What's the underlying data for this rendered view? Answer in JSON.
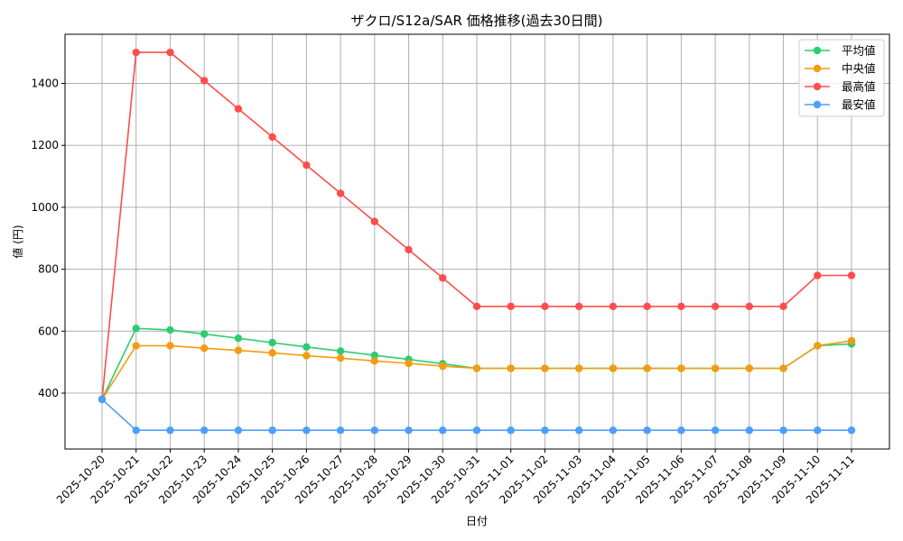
{
  "chart_data": {
    "type": "line",
    "title": "ザクロ/S12a/SAR 価格推移(過去30日間)",
    "xlabel": "日付",
    "ylabel": "値 (円)",
    "ylim": [
      225,
      1555
    ],
    "yticks": [
      400,
      600,
      800,
      1000,
      1200,
      1400
    ],
    "grid": true,
    "legend_position": "upper right",
    "categories": [
      "2025-10-20",
      "2025-10-21",
      "2025-10-22",
      "2025-10-23",
      "2025-10-24",
      "2025-10-25",
      "2025-10-26",
      "2025-10-27",
      "2025-10-28",
      "2025-10-29",
      "2025-10-30",
      "2025-10-31",
      "2025-11-01",
      "2025-11-02",
      "2025-11-03",
      "2025-11-04",
      "2025-11-05",
      "2025-11-06",
      "2025-11-07",
      "2025-11-08",
      "2025-11-09",
      "2025-11-10",
      "2025-11-11"
    ],
    "series": [
      {
        "name": "平均値",
        "color": "#2ecc71",
        "values": [
          380,
          609,
          604,
          591,
          577,
          563,
          549,
          536,
          522,
          509,
          495,
          480,
          480,
          480,
          480,
          480,
          480,
          480,
          480,
          480,
          480,
          553,
          559
        ]
      },
      {
        "name": "中央値",
        "color": "#f39c12",
        "values": [
          380,
          553,
          553,
          545,
          538,
          530,
          521,
          513,
          504,
          496,
          487,
          480,
          480,
          480,
          480,
          480,
          480,
          480,
          480,
          480,
          480,
          553,
          569
        ]
      },
      {
        "name": "最高値",
        "color": "#ff4d4d",
        "values": [
          380,
          1500,
          1500,
          1409,
          1318,
          1227,
          1136,
          1045,
          954,
          863,
          772,
          680,
          680,
          680,
          680,
          680,
          680,
          680,
          680,
          680,
          680,
          780,
          780
        ]
      },
      {
        "name": "最安値",
        "color": "#4d9fff",
        "values": [
          380,
          280,
          280,
          280,
          280,
          280,
          280,
          280,
          280,
          280,
          280,
          280,
          280,
          280,
          280,
          280,
          280,
          280,
          280,
          280,
          280,
          280,
          280
        ]
      }
    ]
  }
}
